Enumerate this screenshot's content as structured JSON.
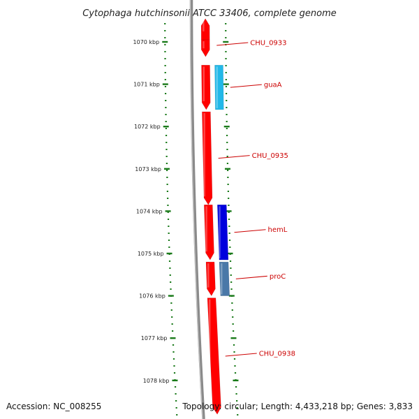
{
  "title": "Cytophaga hutchinsonii ATCC 33406, complete genome",
  "footer": {
    "accession": "Accession: NC_008255",
    "summary": "Topology: circular; Length: 4,433,218 bp; Genes: 3,833"
  },
  "scale": {
    "unit": "kbp",
    "ticks": [
      {
        "value": 1070,
        "label": "1070 kbp"
      },
      {
        "value": 1071,
        "label": "1071 kbp"
      },
      {
        "value": 1072,
        "label": "1072 kbp"
      },
      {
        "value": 1073,
        "label": "1073 kbp"
      },
      {
        "value": 1074,
        "label": "1074 kbp"
      },
      {
        "value": 1075,
        "label": "1075 kbp"
      },
      {
        "value": 1076,
        "label": "1076 kbp"
      },
      {
        "value": 1077,
        "label": "1077 kbp"
      },
      {
        "value": 1078,
        "label": "1078 kbp"
      }
    ]
  },
  "colors": {
    "backbone": "#8a8a8a",
    "cds": "#ff0000",
    "guaA": "#22b8e8",
    "hemL": "#0000dd",
    "proC": "#4a78a8",
    "tick": "#1a7a1a",
    "label": "#cc0000"
  },
  "features": [
    {
      "id": "cds-top",
      "start": 1069.45,
      "end": 1069.95,
      "strand": -1,
      "color": "#ff0000",
      "label": ""
    },
    {
      "id": "CHU_0933",
      "start": 1069.95,
      "end": 1070.35,
      "strand": 1,
      "color": "#ff0000",
      "label": "CHU_0933"
    },
    {
      "id": "CHU_0934",
      "start": 1070.55,
      "end": 1071.6,
      "strand": 1,
      "color": "#ff0000",
      "label": ""
    },
    {
      "id": "guaA",
      "start": 1070.55,
      "end": 1071.6,
      "strand": 1,
      "color": "#22b8e8",
      "label": "guaA"
    },
    {
      "id": "CHU_0935",
      "start": 1071.65,
      "end": 1073.85,
      "strand": 1,
      "color": "#ff0000",
      "label": "CHU_0935"
    },
    {
      "id": "cds-a",
      "start": 1073.85,
      "end": 1075.15,
      "strand": 1,
      "color": "#ff0000",
      "label": ""
    },
    {
      "id": "hemL",
      "start": 1073.85,
      "end": 1075.15,
      "strand": 1,
      "color": "#0000dd",
      "label": "hemL"
    },
    {
      "id": "cds-b",
      "start": 1075.2,
      "end": 1076.0,
      "strand": 1,
      "color": "#ff0000",
      "label": ""
    },
    {
      "id": "proC",
      "start": 1075.2,
      "end": 1076.0,
      "strand": 1,
      "color": "#4a78a8",
      "label": "proC"
    },
    {
      "id": "CHU_0938",
      "start": 1076.05,
      "end": 1078.8,
      "strand": 1,
      "color": "#ff0000",
      "label": "CHU_0938"
    }
  ]
}
